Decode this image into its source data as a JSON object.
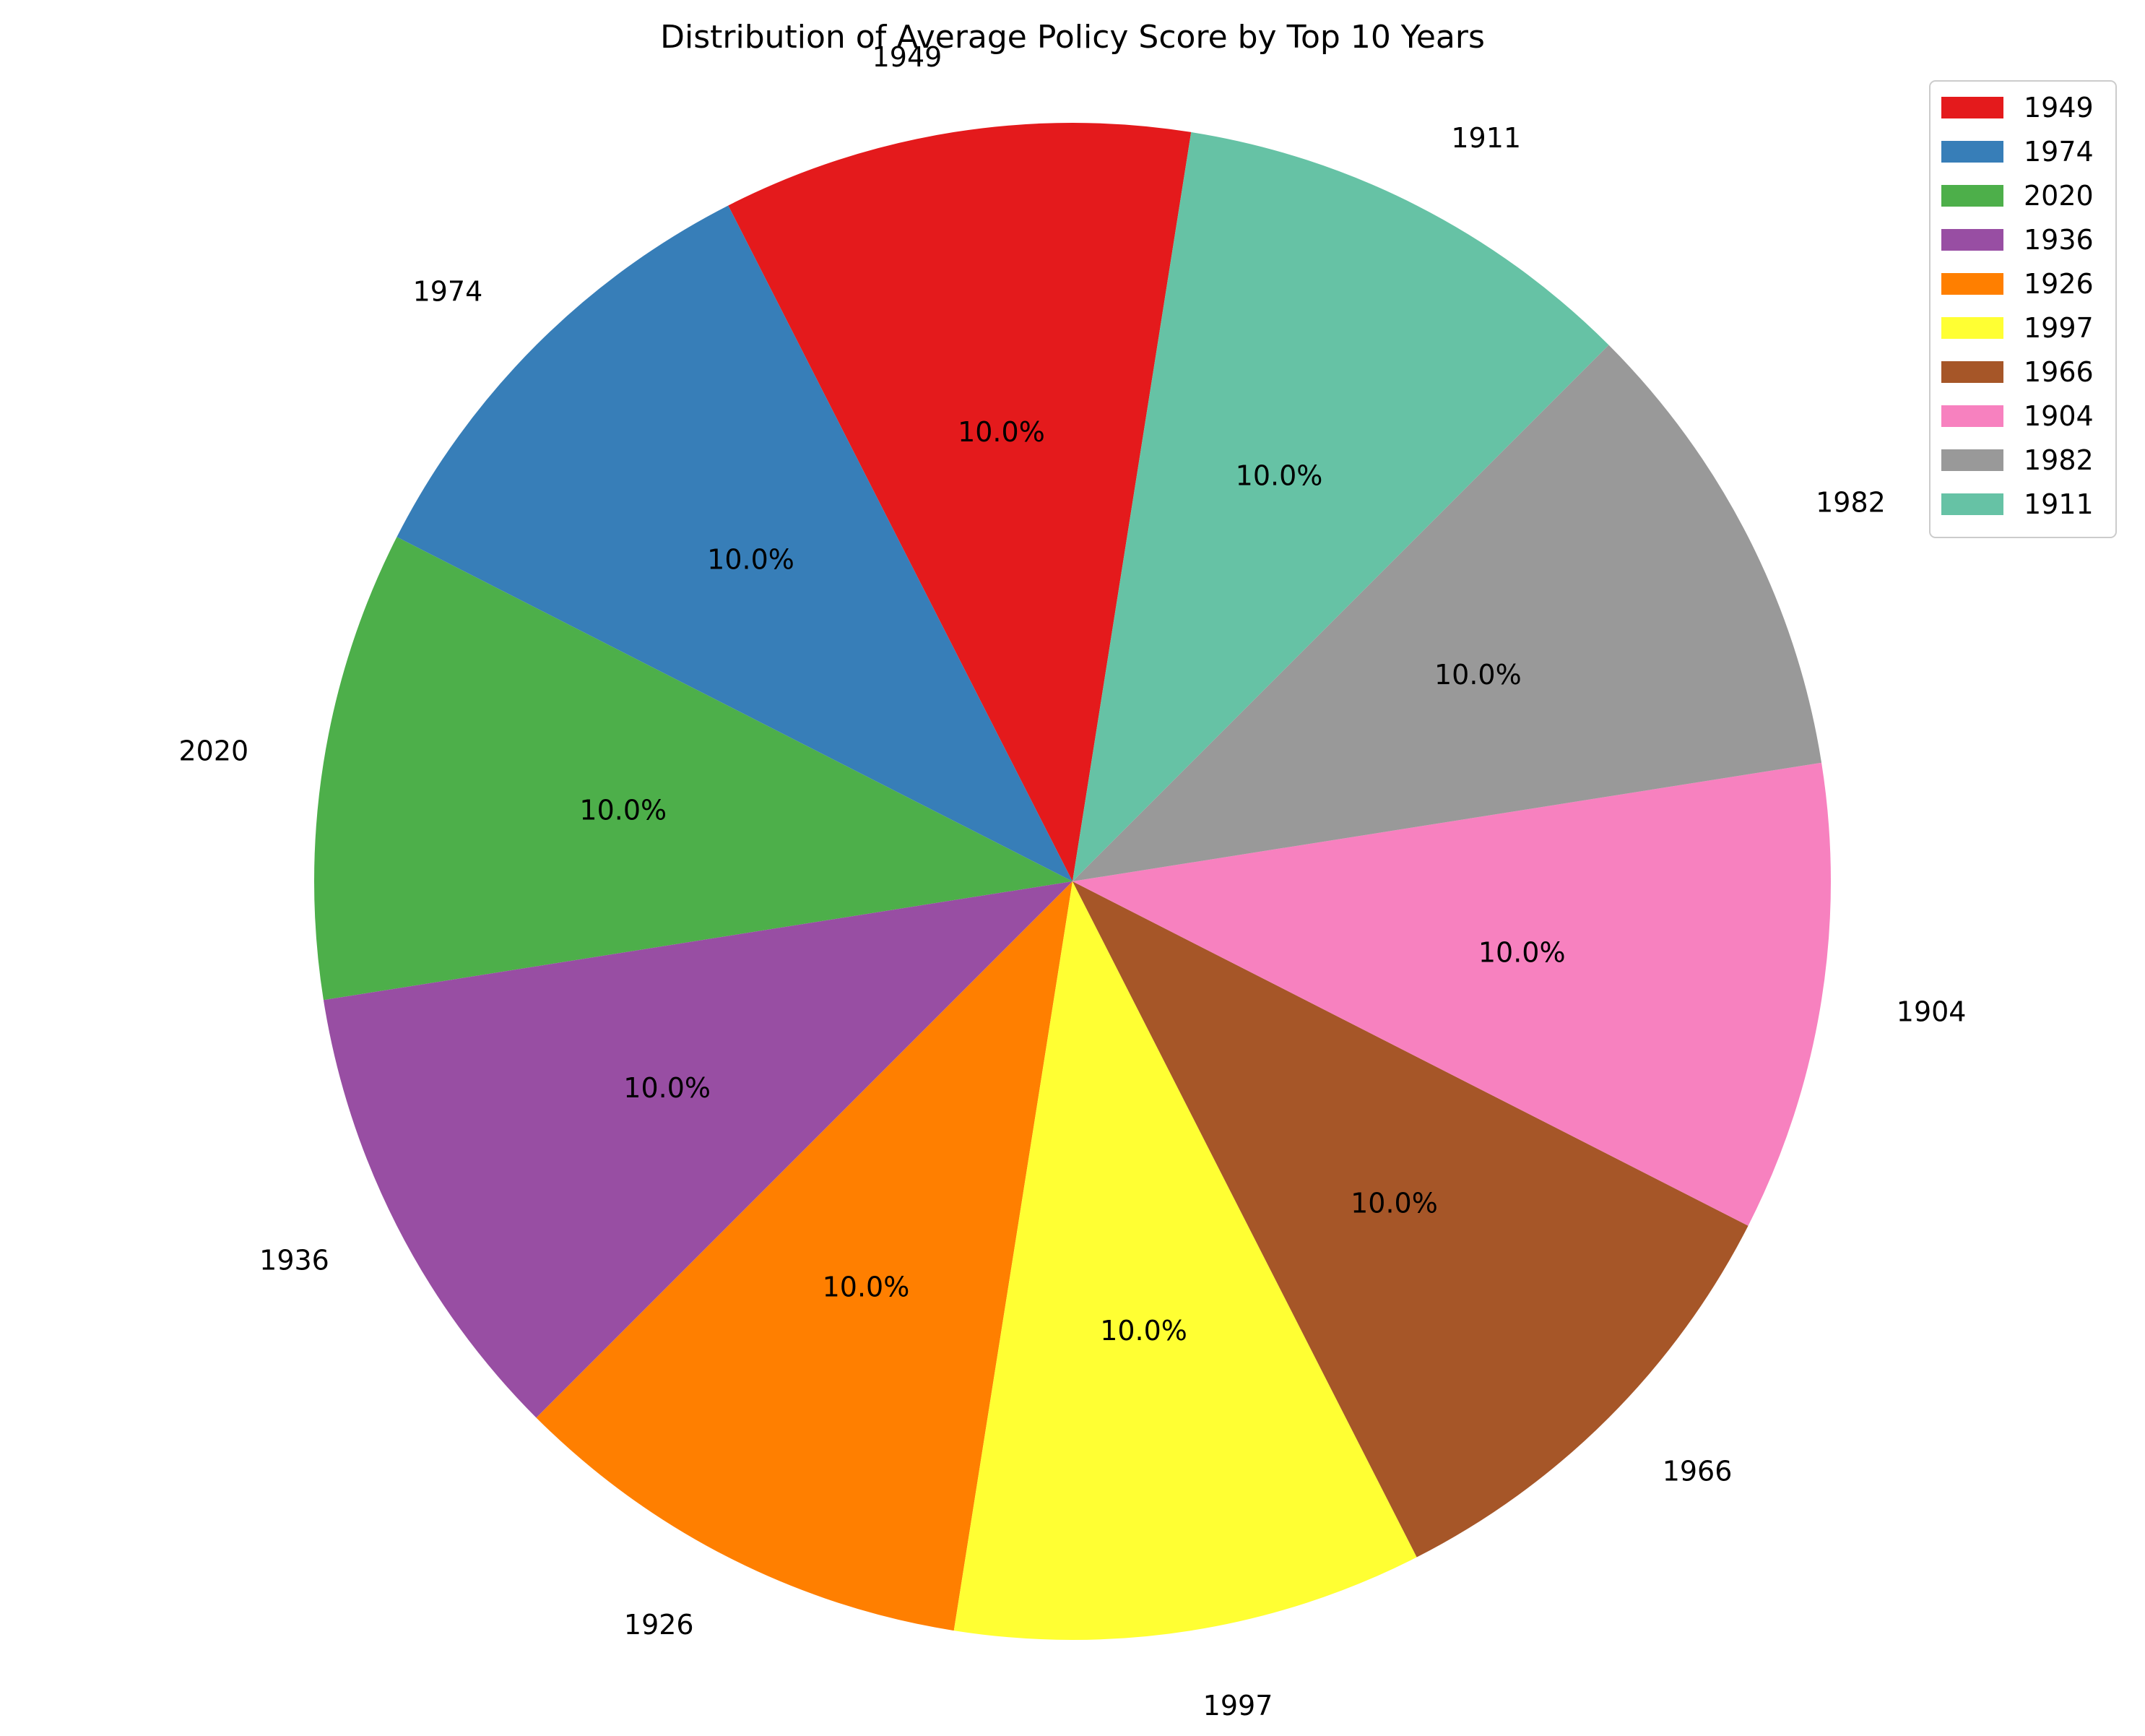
{
  "chart_data": {
    "type": "pie",
    "title": "Distribution of Average Policy Score by Top 10 Years",
    "categories": [
      "1949",
      "1974",
      "2020",
      "1936",
      "1926",
      "1997",
      "1966",
      "1904",
      "1982",
      "1911"
    ],
    "values": [
      10,
      10,
      10,
      10,
      10,
      10,
      10,
      10,
      10,
      10
    ],
    "percent_labels": [
      "10.0%",
      "10.0%",
      "10.0%",
      "10.0%",
      "10.0%",
      "10.0%",
      "10.0%",
      "10.0%",
      "10.0%",
      "10.0%"
    ],
    "colors": [
      "#e41a1c",
      "#377eb8",
      "#4daf4a",
      "#984ea3",
      "#ff7f00",
      "#ffff33",
      "#a65628",
      "#f781bf",
      "#999999",
      "#66c2a5"
    ],
    "counterclock": true,
    "legend": {
      "placement": "top-right",
      "entries": [
        "1949",
        "1974",
        "2020",
        "1936",
        "1926",
        "1997",
        "1966",
        "1904",
        "1982",
        "1911"
      ]
    }
  }
}
